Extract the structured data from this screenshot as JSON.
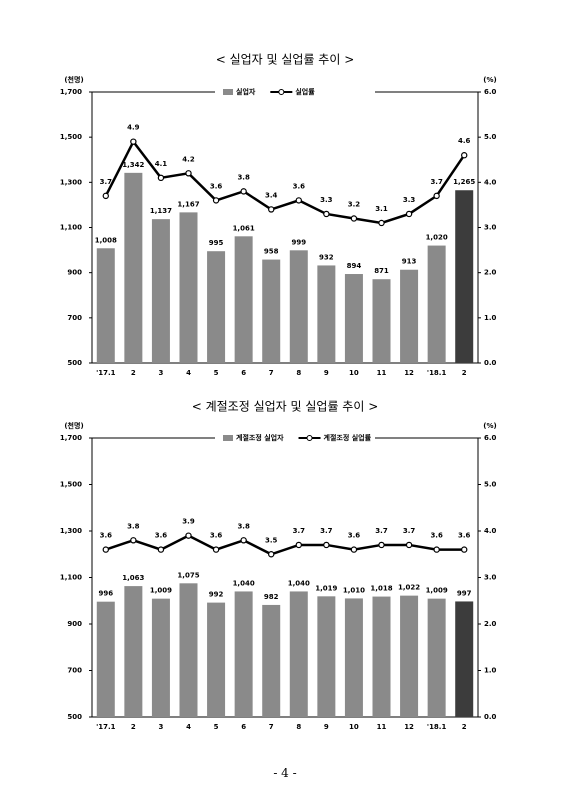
{
  "chart_data": [
    {
      "type": "bar_line",
      "title": "< 실업자 및 실업률 추이 >",
      "y_unit": "(천명)",
      "y2_unit": "(%)",
      "categories": [
        "'17.1",
        "2",
        "3",
        "4",
        "5",
        "6",
        "7",
        "8",
        "9",
        "10",
        "11",
        "12",
        "'18.1",
        "2"
      ],
      "series": [
        {
          "name": "실업자",
          "type": "bar",
          "color": "#8a8a8a",
          "colors": [
            "#8a8a8a",
            "#8a8a8a",
            "#8a8a8a",
            "#8a8a8a",
            "#8a8a8a",
            "#8a8a8a",
            "#8a8a8a",
            "#8a8a8a",
            "#8a8a8a",
            "#8a8a8a",
            "#8a8a8a",
            "#8a8a8a",
            "#8a8a8a",
            "#3c3c3c"
          ],
          "values": [
            1008,
            1342,
            1137,
            1167,
            995,
            1061,
            958,
            999,
            932,
            894,
            871,
            913,
            1020,
            1265
          ],
          "value_labels": [
            "1,008",
            "1,342",
            "1,137",
            "1,167",
            "995",
            "1,061",
            "958",
            "999",
            "932",
            "894",
            "871",
            "913",
            "1,020",
            "1,265"
          ]
        },
        {
          "name": "실업률",
          "type": "line",
          "axis": "y2",
          "color": "#000000",
          "values": [
            3.7,
            4.9,
            4.1,
            4.2,
            3.6,
            3.8,
            3.4,
            3.6,
            3.3,
            3.2,
            3.1,
            3.3,
            3.7,
            4.6
          ]
        }
      ],
      "ylim": [
        500,
        1700
      ],
      "yticks": [
        500,
        700,
        900,
        {
          "value": 1100,
          "label": "1,100"
        },
        {
          "value": 1300,
          "label": "1,300"
        },
        {
          "value": 1500,
          "label": "1,500"
        },
        {
          "value": 1700,
          "label": "1,700"
        }
      ],
      "y2lim": [
        0,
        6
      ],
      "y2ticks": [
        {
          "value": 0,
          "label": "0.0"
        },
        {
          "value": 1,
          "label": "1.0"
        },
        {
          "value": 2,
          "label": "2.0"
        },
        {
          "value": 3,
          "label": "3.0"
        },
        {
          "value": 4,
          "label": "4.0"
        },
        {
          "value": 5,
          "label": "5.0"
        },
        {
          "value": 6,
          "label": "6.0"
        }
      ]
    },
    {
      "type": "bar_line",
      "title": "< 계절조정 실업자 및 실업률 추이 >",
      "y_unit": "(천명)",
      "y2_unit": "(%)",
      "categories": [
        "'17.1",
        "2",
        "3",
        "4",
        "5",
        "6",
        "7",
        "8",
        "9",
        "10",
        "11",
        "12",
        "'18.1",
        "2"
      ],
      "series": [
        {
          "name": "계절조정 실업자",
          "type": "bar",
          "color": "#8a8a8a",
          "colors": [
            "#8a8a8a",
            "#8a8a8a",
            "#8a8a8a",
            "#8a8a8a",
            "#8a8a8a",
            "#8a8a8a",
            "#8a8a8a",
            "#8a8a8a",
            "#8a8a8a",
            "#8a8a8a",
            "#8a8a8a",
            "#8a8a8a",
            "#8a8a8a",
            "#3c3c3c"
          ],
          "values": [
            996,
            1063,
            1009,
            1075,
            992,
            1040,
            982,
            1040,
            1019,
            1010,
            1018,
            1022,
            1009,
            997
          ],
          "value_labels": [
            "996",
            "1,063",
            "1,009",
            "1,075",
            "992",
            "1,040",
            "982",
            "1,040",
            "1,019",
            "1,010",
            "1,018",
            "1,022",
            "1,009",
            "997"
          ]
        },
        {
          "name": "계절조정 실업률",
          "type": "line",
          "axis": "y2",
          "color": "#000000",
          "values": [
            3.6,
            3.8,
            3.6,
            3.9,
            3.6,
            3.8,
            3.5,
            3.7,
            3.7,
            3.6,
            3.7,
            3.7,
            3.6,
            3.6
          ]
        }
      ],
      "ylim": [
        500,
        1700
      ],
      "yticks": [
        500,
        700,
        900,
        {
          "value": 1100,
          "label": "1,100"
        },
        {
          "value": 1300,
          "label": "1,300"
        },
        {
          "value": 1500,
          "label": "1,500"
        },
        {
          "value": 1700,
          "label": "1,700"
        }
      ],
      "y2lim": [
        0,
        6
      ],
      "y2ticks": [
        {
          "value": 0,
          "label": "0.0"
        },
        {
          "value": 1,
          "label": "1.0"
        },
        {
          "value": 2,
          "label": "2.0"
        },
        {
          "value": 3,
          "label": "3.0"
        },
        {
          "value": 4,
          "label": "4.0"
        },
        {
          "value": 5,
          "label": "5.0"
        },
        {
          "value": 6,
          "label": "6.0"
        }
      ]
    }
  ],
  "page_number": "- 4 -"
}
